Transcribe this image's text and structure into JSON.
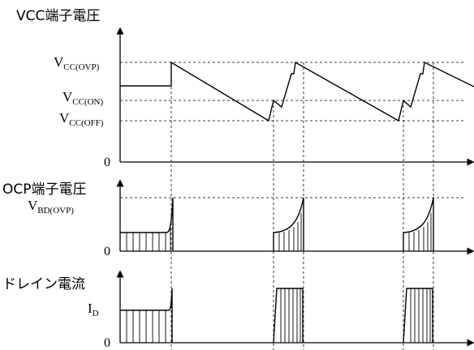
{
  "panels": {
    "vcc": {
      "title": "VCC端子電圧",
      "ovp": {
        "main": "V",
        "sub": "CC(OVP)"
      },
      "on": {
        "main": "V",
        "sub": "CC(ON)"
      },
      "off": {
        "main": "V",
        "sub": "CC(OFF)"
      },
      "zero": "0"
    },
    "ocp": {
      "title": "OCP端子電圧",
      "bd": {
        "main": "V",
        "sub": "BD(OVP)"
      },
      "zero": "0"
    },
    "drain": {
      "title": "ドレイン電流",
      "id": {
        "main": "I",
        "sub": "D"
      },
      "zero": "0"
    }
  },
  "colors": {
    "line": "#000000",
    "background": "#ffffff"
  }
}
